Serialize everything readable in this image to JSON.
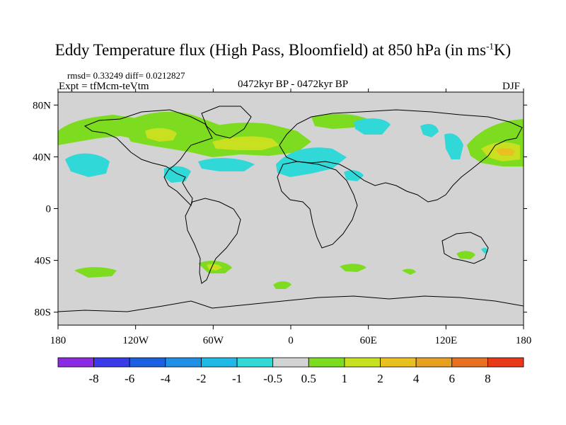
{
  "header": {
    "title_main": "Eddy Temperature flux (High Pass, Bloomfield) at 850 hPa (in ms",
    "title_exp": "-1",
    "title_end": "K)",
    "stats": "rmsd= 0.33249 diff= 0.0212827",
    "experiment": "Expt = tfMcm-teVtm",
    "period": "0472kyr BP - 0472kyr BP",
    "season": "DJF"
  },
  "colors": {
    "land_mask": "#d3d3d3",
    "coast": "#000000",
    "scale": [
      "#8a2be2",
      "#3a3ae8",
      "#1a60e0",
      "#1e90e8",
      "#20b8e6",
      "#30d8d8",
      "#d3d3d3",
      "#7ddc1f",
      "#c8e020",
      "#e8c020",
      "#e8a020",
      "#e87020",
      "#e83a18"
    ]
  },
  "chart_data": {
    "type": "heatmap",
    "title": "Eddy Temperature flux (High Pass, Bloomfield) at 850 hPa (in ms-1K)",
    "subtitle": "0472kyr BP - 0472kyr BP",
    "season": "DJF",
    "x_ticks": [
      "180",
      "120W",
      "60W",
      "0",
      "60E",
      "120E",
      "180"
    ],
    "y_ticks": [
      "80N",
      "40N",
      "0",
      "40S",
      "80S"
    ],
    "xlim": [
      -180,
      180
    ],
    "ylim": [
      -90,
      90
    ],
    "colorbar": {
      "levels": [
        -8,
        -6,
        -4,
        -2,
        -1,
        -0.5,
        0.5,
        1,
        2,
        4,
        6,
        8
      ],
      "labels": [
        "-8",
        "-6",
        "-4",
        "-2",
        "-1",
        "-0.5",
        "0.5",
        "1",
        "2",
        "4",
        "6",
        "8"
      ]
    },
    "regions": [
      {
        "name": "north-pacific-positive",
        "lon": -165,
        "lat": 52,
        "value": 1.2
      },
      {
        "name": "north-america-positive",
        "lon": -95,
        "lat": 58,
        "value": 1.5
      },
      {
        "name": "north-atlantic-positive",
        "lon": -30,
        "lat": 48,
        "value": 2.5
      },
      {
        "name": "north-atlantic-negative",
        "lon": -50,
        "lat": 37,
        "value": -0.8
      },
      {
        "name": "east-pacific-negative",
        "lon": -150,
        "lat": 36,
        "value": -0.8
      },
      {
        "name": "mediterranean-negative",
        "lon": 20,
        "lat": 38,
        "value": -0.8
      },
      {
        "name": "siberia-negative",
        "lon": 70,
        "lat": 60,
        "value": -0.8
      },
      {
        "name": "northwest-pacific-positive",
        "lon": 160,
        "lat": 45,
        "value": 3
      },
      {
        "name": "south-america-positive",
        "lon": -60,
        "lat": -42,
        "value": 1.5
      },
      {
        "name": "southern-ocean-positive",
        "lon": -150,
        "lat": -45,
        "value": 1
      }
    ]
  }
}
